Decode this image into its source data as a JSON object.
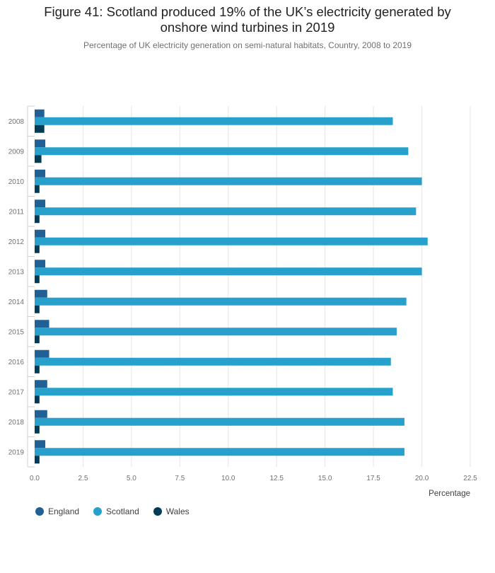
{
  "title_line1": "Figure 41: Scotland produced 19% of the UK’s electricity generated by",
  "title_line2": "onshore wind turbines in 2019",
  "subtitle": "Percentage of UK electricity generation on semi-natural habitats, Country, 2008 to 2019",
  "chart_data": {
    "type": "bar",
    "orientation": "horizontal",
    "title": "Figure 41: Scotland produced 19% of the UK’s electricity generated by onshore wind turbines in 2019",
    "subtitle": "Percentage of UK electricity generation on semi-natural habitats, Country, 2008 to 2019",
    "xlabel": "Percentage",
    "ylabel": "",
    "xlim": [
      0,
      22.5
    ],
    "xticks": [
      0,
      2.5,
      5,
      7.5,
      10,
      12.5,
      15,
      17.5,
      20,
      22.5
    ],
    "xtick_labels": [
      "0.0",
      "2.5",
      "5.0",
      "7.5",
      "10.0",
      "12.5",
      "15.0",
      "17.5",
      "20.0",
      "22.5"
    ],
    "grid": true,
    "legend_position": "bottom-left",
    "categories": [
      "2008",
      "2009",
      "2010",
      "2011",
      "2012",
      "2013",
      "2014",
      "2015",
      "2016",
      "2017",
      "2018",
      "2019"
    ],
    "series": [
      {
        "name": "England",
        "color": "#206095",
        "values": [
          0.5,
          0.55,
          0.55,
          0.55,
          0.55,
          0.55,
          0.65,
          0.75,
          0.75,
          0.65,
          0.65,
          0.55
        ]
      },
      {
        "name": "Scotland",
        "color": "#27a0cc",
        "values": [
          18.5,
          19.3,
          20.0,
          19.7,
          20.3,
          20.0,
          19.2,
          18.7,
          18.4,
          18.5,
          19.1,
          19.1
        ]
      },
      {
        "name": "Wales",
        "color": "#003c57",
        "values": [
          0.5,
          0.35,
          0.25,
          0.25,
          0.25,
          0.25,
          0.25,
          0.25,
          0.25,
          0.25,
          0.25,
          0.25
        ]
      }
    ]
  }
}
